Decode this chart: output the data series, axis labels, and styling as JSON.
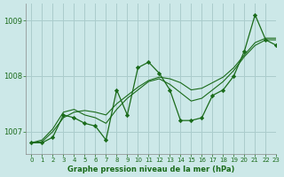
{
  "bg_color": "#cce8e8",
  "grid_color": "#aacccc",
  "line_color": "#1a6b1a",
  "marker_color": "#1a6b1a",
  "series": [
    [
      1006.8,
      1006.8,
      1006.9,
      1007.3,
      1007.25,
      1007.15,
      1007.1,
      1006.85,
      1007.75,
      1007.3,
      1008.15,
      1008.25,
      1008.05,
      1007.75,
      1007.2,
      1007.2,
      1007.25,
      1007.65,
      1007.75,
      1008.0,
      1008.45,
      1009.1,
      1008.65,
      1008.55
    ],
    [
      1006.8,
      1006.85,
      1007.05,
      1007.35,
      1007.4,
      1007.3,
      1007.25,
      1007.15,
      1007.4,
      1007.6,
      1007.75,
      1007.9,
      1007.95,
      1007.85,
      1007.7,
      1007.55,
      1007.6,
      1007.75,
      1007.9,
      1008.1,
      1008.35,
      1008.55,
      1008.65,
      1008.65
    ],
    [
      1006.8,
      1006.82,
      1007.0,
      1007.25,
      1007.35,
      1007.38,
      1007.35,
      1007.3,
      1007.5,
      1007.65,
      1007.8,
      1007.92,
      1007.98,
      1007.95,
      1007.88,
      1007.75,
      1007.78,
      1007.88,
      1007.98,
      1008.15,
      1008.38,
      1008.6,
      1008.68,
      1008.68
    ]
  ],
  "xlabel": "Graphe pression niveau de la mer (hPa)",
  "xlim": [
    -0.5,
    23
  ],
  "ylim": [
    1006.6,
    1009.3
  ],
  "yticks": [
    1007,
    1008,
    1009
  ],
  "xticks": [
    0,
    1,
    2,
    3,
    4,
    5,
    6,
    7,
    8,
    9,
    10,
    11,
    12,
    13,
    14,
    15,
    16,
    17,
    18,
    19,
    20,
    21,
    22,
    23
  ]
}
